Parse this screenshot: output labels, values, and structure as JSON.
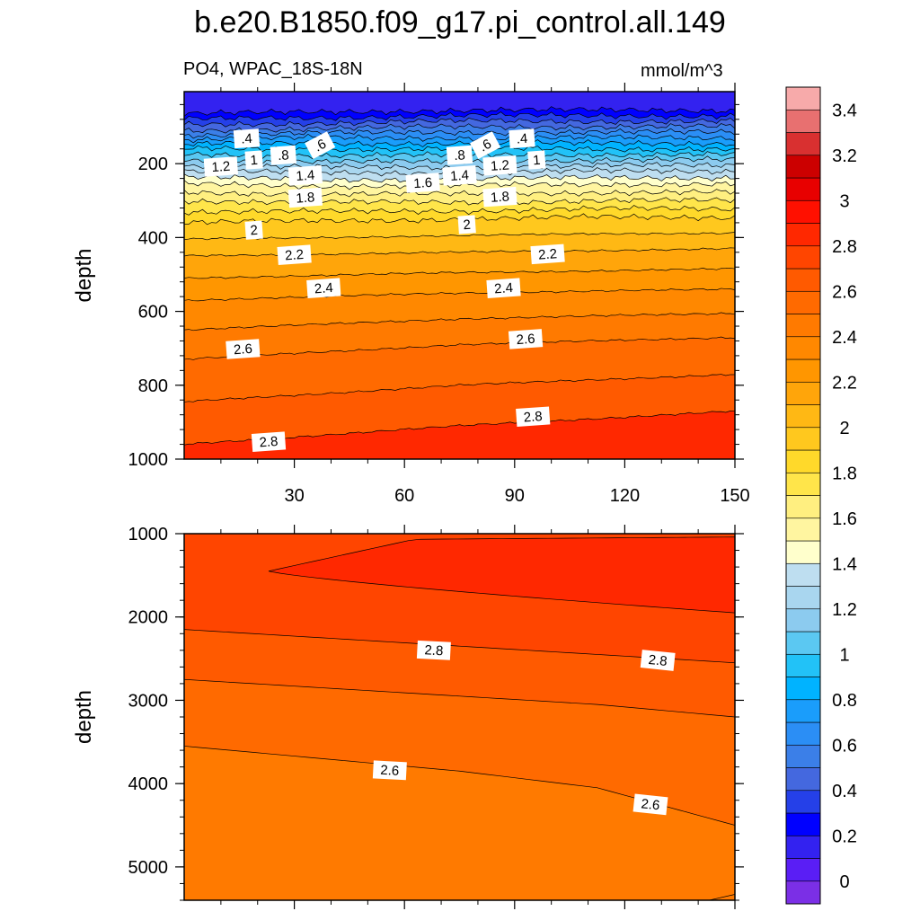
{
  "figure": {
    "title": "b.e20.B1850.f09_g17.pi_control.all.149",
    "subtitle_left": "PO4, WPAC_18S-18N",
    "subtitle_right": "mmol/m^3"
  },
  "chart_data": [
    {
      "type": "contour",
      "panel": "upper",
      "xlabel": "",
      "ylabel": "depth",
      "xlim": [
        0,
        150
      ],
      "ylim": [
        1000,
        5
      ],
      "x_ticks": [
        30,
        60,
        90,
        120,
        150
      ],
      "y_ticks": [
        200,
        400,
        600,
        800,
        1000
      ],
      "contour_interval": 0.1,
      "contours": [
        {
          "level": 0.4,
          "depths": [
            80,
            75,
            70,
            70,
            70
          ]
        },
        {
          "level": 0.6,
          "depths": [
            110,
            105,
            100,
            100,
            100
          ]
        },
        {
          "level": 0.8,
          "depths": [
            135,
            130,
            130,
            130,
            130
          ]
        },
        {
          "level": 1.0,
          "depths": [
            160,
            160,
            160,
            160,
            160
          ]
        },
        {
          "level": 1.2,
          "depths": [
            190,
            195,
            195,
            190,
            190
          ]
        },
        {
          "level": 1.4,
          "depths": [
            220,
            225,
            225,
            220,
            220
          ]
        },
        {
          "level": 1.6,
          "depths": [
            255,
            260,
            260,
            255,
            255
          ]
        },
        {
          "level": 1.8,
          "depths": [
            300,
            305,
            305,
            300,
            300
          ]
        },
        {
          "level": 2.0,
          "depths": [
            360,
            355,
            350,
            345,
            345
          ]
        },
        {
          "level": 2.2,
          "depths": [
            450,
            445,
            440,
            435,
            430
          ]
        },
        {
          "level": 2.4,
          "depths": [
            570,
            560,
            550,
            545,
            540
          ]
        },
        {
          "level": 2.6,
          "depths": [
            730,
            710,
            690,
            680,
            670
          ]
        },
        {
          "level": 2.8,
          "depths": [
            960,
            935,
            910,
            890,
            870
          ]
        }
      ],
      "contour_labels": [
        {
          "text": ".4",
          "x": 17,
          "depth": 132
        },
        {
          "text": ".6",
          "x": 37,
          "depth": 150
        },
        {
          "text": ".8",
          "x": 27,
          "depth": 177
        },
        {
          "text": "1",
          "x": 19,
          "depth": 190
        },
        {
          "text": "1.2",
          "x": 10,
          "depth": 208
        },
        {
          "text": "1.4",
          "x": 33,
          "depth": 232
        },
        {
          "text": "1.8",
          "x": 33,
          "depth": 292
        },
        {
          "text": "2",
          "x": 19,
          "depth": 380
        },
        {
          "text": "2.2",
          "x": 30,
          "depth": 447
        },
        {
          "text": "2.4",
          "x": 38,
          "depth": 537
        },
        {
          "text": "2.6",
          "x": 16,
          "depth": 702
        },
        {
          "text": "2.8",
          "x": 23,
          "depth": 953
        },
        {
          "text": ".4",
          "x": 92,
          "depth": 132
        },
        {
          "text": ".6",
          "x": 82,
          "depth": 150
        },
        {
          "text": ".8",
          "x": 75,
          "depth": 177
        },
        {
          "text": "1",
          "x": 96,
          "depth": 190
        },
        {
          "text": "1.2",
          "x": 86,
          "depth": 205
        },
        {
          "text": "1.4",
          "x": 75,
          "depth": 232
        },
        {
          "text": "1.6",
          "x": 65,
          "depth": 252
        },
        {
          "text": "1.8",
          "x": 86,
          "depth": 290
        },
        {
          "text": "2",
          "x": 77,
          "depth": 365
        },
        {
          "text": "2.2",
          "x": 99,
          "depth": 445
        },
        {
          "text": "2.4",
          "x": 87,
          "depth": 537
        },
        {
          "text": "2.6",
          "x": 93,
          "depth": 675
        },
        {
          "text": "2.8",
          "x": 95,
          "depth": 885
        }
      ]
    },
    {
      "type": "contour",
      "panel": "lower",
      "xlabel": "",
      "ylabel": "depth",
      "xlim": [
        0,
        150
      ],
      "ylim": [
        5400,
        1000
      ],
      "y_ticks": [
        1000,
        2000,
        3000,
        4000,
        5000
      ],
      "regions": [
        {
          "value_range": [
            2.9,
            3.0
          ],
          "description_level": 2.9,
          "boundary_depths": [
            1400,
            1500,
            1700,
            1850,
            1950
          ]
        },
        {
          "level": 2.8,
          "depths": [
            2150,
            2250,
            2350,
            2450,
            2550
          ]
        },
        {
          "level": 2.7,
          "depths": [
            2750,
            2850,
            2950,
            3050,
            3200
          ]
        },
        {
          "level": 2.6,
          "depths": [
            3550,
            3700,
            3850,
            4050,
            4500
          ]
        }
      ],
      "contour_labels": [
        {
          "text": "2.8",
          "x": 68,
          "depth": 2400
        },
        {
          "text": "2.8",
          "x": 129,
          "depth": 2520
        },
        {
          "text": "2.6",
          "x": 56,
          "depth": 3840
        },
        {
          "text": "2.6",
          "x": 127,
          "depth": 4250
        }
      ]
    }
  ],
  "colorbar": {
    "labels": [
      "0",
      "0.2",
      "0.4",
      "0.6",
      "0.8",
      "1",
      "1.2",
      "1.4",
      "1.6",
      "1.8",
      "2",
      "2.2",
      "2.4",
      "2.6",
      "2.8",
      "3",
      "3.2",
      "3.4"
    ],
    "colors": [
      "#7b2fe6",
      "#5a1ef5",
      "#3322f0",
      "#0000ff",
      "#2540e8",
      "#4468df",
      "#3b7fe8",
      "#2b8ef5",
      "#1a9dfb",
      "#00b3ff",
      "#22c2f7",
      "#5bc8f2",
      "#8ccbef",
      "#a9d6ef",
      "#bedef0",
      "#ffffcc",
      "#fff5a0",
      "#ffef80",
      "#ffe54a",
      "#ffd92a",
      "#ffc81e",
      "#ffb814",
      "#ffa50a",
      "#ff9600",
      "#ff8800",
      "#ff7a00",
      "#ff6a00",
      "#ff5a00",
      "#ff4500",
      "#ff2800",
      "#ff1000",
      "#e80000",
      "#cc0000",
      "#d93030",
      "#e87070",
      "#f7aaaa"
    ]
  }
}
